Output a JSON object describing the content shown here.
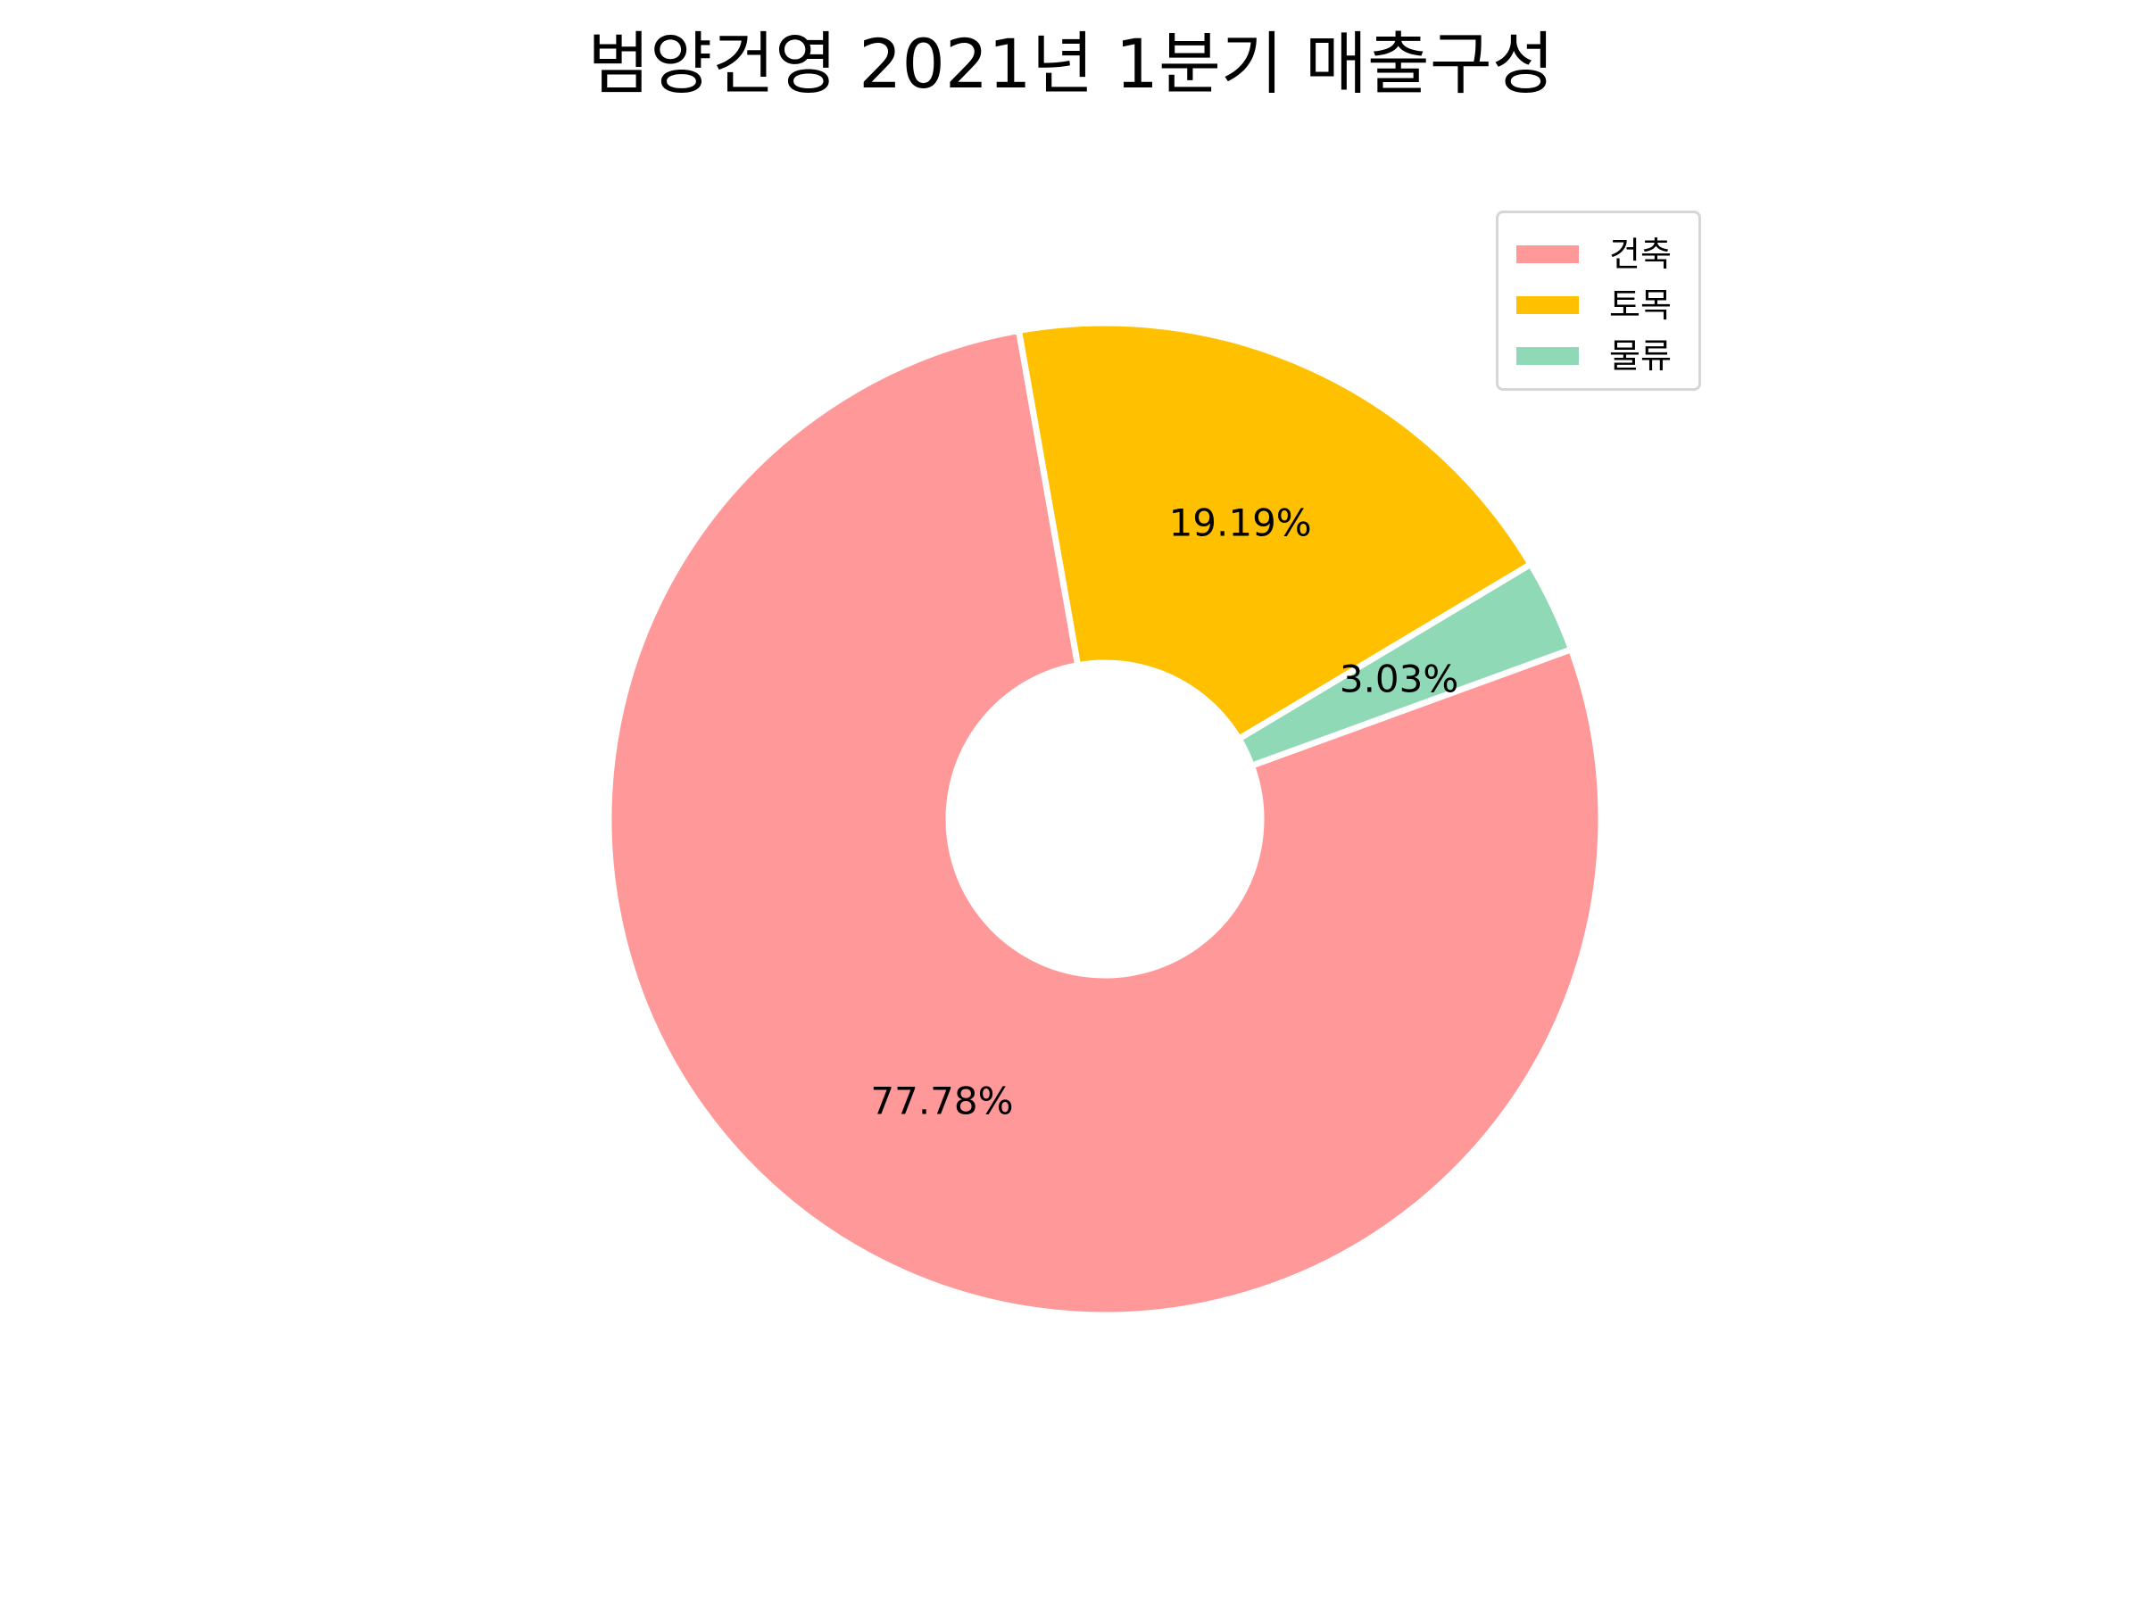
{
  "chart_data": {
    "type": "pie",
    "style": "donut",
    "title": "범양건영 2021년 1분기 매출구성",
    "start_angle_deg": -20,
    "direction": "clockwise",
    "slices": [
      {
        "name": "건축",
        "value": 77.78,
        "label": "77.78%",
        "color": "#ff9999"
      },
      {
        "name": "토목",
        "value": 19.19,
        "label": "19.19%",
        "color": "#ffc000"
      },
      {
        "name": "물류",
        "value": 3.03,
        "label": "3.03%",
        "color": "#8fd9b6"
      }
    ],
    "legend": {
      "position": "top-right"
    }
  }
}
